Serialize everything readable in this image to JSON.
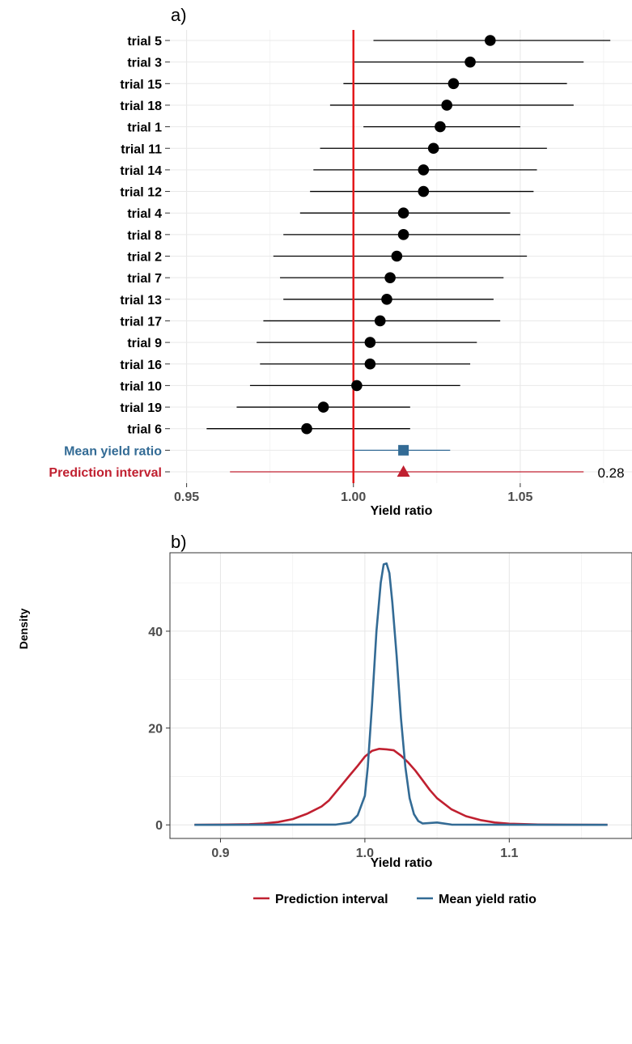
{
  "chart_data": [
    {
      "panel_label": "a)",
      "type": "forest",
      "xlabel": "Yield ratio",
      "xlim": [
        0.945,
        1.0835
      ],
      "xticks": [
        0.95,
        1.0,
        1.05
      ],
      "xtick_labels": [
        "0.95",
        "1.00",
        "1.05"
      ],
      "reference_line": 1.0,
      "reference_color": "#e31a1c",
      "grid": true,
      "rows": [
        {
          "label": "trial  5",
          "estimate": 1.041,
          "lower": 1.006,
          "upper": 1.077
        },
        {
          "label": "trial  3",
          "estimate": 1.035,
          "lower": 1.0,
          "upper": 1.069
        },
        {
          "label": "trial  15",
          "estimate": 1.03,
          "lower": 0.997,
          "upper": 1.064
        },
        {
          "label": "trial  18",
          "estimate": 1.028,
          "lower": 0.993,
          "upper": 1.066
        },
        {
          "label": "trial  1",
          "estimate": 1.026,
          "lower": 1.003,
          "upper": 1.05
        },
        {
          "label": "trial  11",
          "estimate": 1.024,
          "lower": 0.99,
          "upper": 1.058
        },
        {
          "label": "trial  14",
          "estimate": 1.021,
          "lower": 0.988,
          "upper": 1.055
        },
        {
          "label": "trial  12",
          "estimate": 1.021,
          "lower": 0.987,
          "upper": 1.054
        },
        {
          "label": "trial  4",
          "estimate": 1.015,
          "lower": 0.984,
          "upper": 1.047
        },
        {
          "label": "trial  8",
          "estimate": 1.015,
          "lower": 0.979,
          "upper": 1.05
        },
        {
          "label": "trial  2",
          "estimate": 1.013,
          "lower": 0.976,
          "upper": 1.052
        },
        {
          "label": "trial  7",
          "estimate": 1.011,
          "lower": 0.978,
          "upper": 1.045
        },
        {
          "label": "trial  13",
          "estimate": 1.01,
          "lower": 0.979,
          "upper": 1.042
        },
        {
          "label": "trial  17",
          "estimate": 1.008,
          "lower": 0.973,
          "upper": 1.044
        },
        {
          "label": "trial  9",
          "estimate": 1.005,
          "lower": 0.971,
          "upper": 1.037
        },
        {
          "label": "trial  16",
          "estimate": 1.005,
          "lower": 0.972,
          "upper": 1.035
        },
        {
          "label": "trial  10",
          "estimate": 1.001,
          "lower": 0.969,
          "upper": 1.032
        },
        {
          "label": "trial  19",
          "estimate": 0.991,
          "lower": 0.965,
          "upper": 1.017
        },
        {
          "label": "trial  6",
          "estimate": 0.986,
          "lower": 0.956,
          "upper": 1.017
        }
      ],
      "summary": [
        {
          "label": "Mean yield ratio",
          "estimate": 1.015,
          "lower": 1.0,
          "upper": 1.029,
          "color": "#336b95",
          "marker": "square"
        },
        {
          "label": "Prediction interval",
          "estimate": 1.015,
          "lower": 0.963,
          "upper": 1.069,
          "color": "#c02030",
          "marker": "triangle",
          "annotation": "0.28"
        }
      ]
    },
    {
      "panel_label": "b)",
      "type": "line",
      "xlabel": "Yield ratio",
      "ylabel": "Density",
      "xlim": [
        0.865,
        1.185
      ],
      "ylim": [
        -2.8,
        56.2
      ],
      "xticks": [
        0.9,
        1.0,
        1.1
      ],
      "xtick_labels": [
        "0.9",
        "1.0",
        "1.1"
      ],
      "yticks": [
        0,
        20,
        40
      ],
      "ytick_labels": [
        "0",
        "20",
        "40"
      ],
      "grid": true,
      "legend_position": "bottom",
      "series": [
        {
          "name": "Prediction interval",
          "color": "#c02030",
          "x": [
            0.882,
            0.9,
            0.92,
            0.93,
            0.94,
            0.95,
            0.96,
            0.97,
            0.975,
            0.98,
            0.985,
            0.99,
            0.995,
            1.0,
            1.005,
            1.01,
            1.015,
            1.02,
            1.025,
            1.03,
            1.035,
            1.04,
            1.045,
            1.05,
            1.06,
            1.07,
            1.08,
            1.09,
            1.1,
            1.12,
            1.14,
            1.168
          ],
          "y": [
            0.0,
            0.05,
            0.15,
            0.3,
            0.6,
            1.2,
            2.3,
            3.8,
            5.0,
            6.8,
            8.6,
            10.4,
            12.2,
            14.1,
            15.3,
            15.7,
            15.6,
            15.4,
            14.3,
            12.9,
            11.2,
            9.2,
            7.2,
            5.5,
            3.2,
            1.8,
            1.0,
            0.5,
            0.25,
            0.08,
            0.02,
            0.0
          ]
        },
        {
          "name": "Mean yield ratio",
          "color": "#336b95",
          "x": [
            0.882,
            0.98,
            0.99,
            0.995,
            1.0,
            1.002,
            1.005,
            1.008,
            1.011,
            1.013,
            1.015,
            1.017,
            1.019,
            1.022,
            1.025,
            1.028,
            1.031,
            1.034,
            1.037,
            1.04,
            1.05,
            1.06,
            1.168
          ],
          "y": [
            0.0,
            0.05,
            0.5,
            2.0,
            6.0,
            12.0,
            25.0,
            40.0,
            50.0,
            53.8,
            54.0,
            52.0,
            46.0,
            35.0,
            22.0,
            12.0,
            5.5,
            2.2,
            0.8,
            0.3,
            0.5,
            0.05,
            0.0
          ]
        }
      ]
    }
  ]
}
